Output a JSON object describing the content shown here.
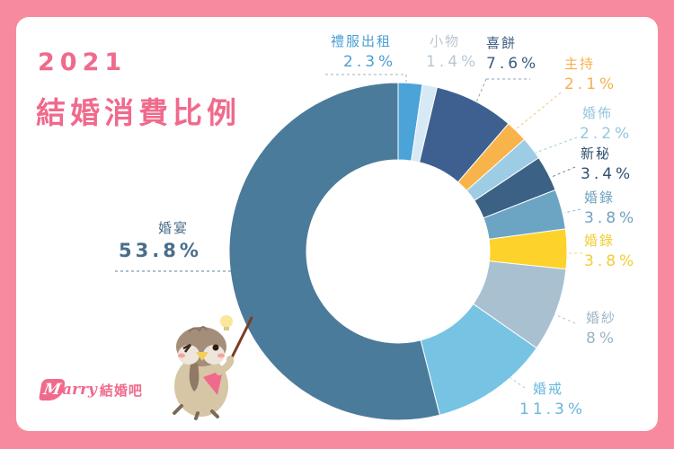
{
  "title": {
    "year": "2021",
    "main": "結婚消費比例"
  },
  "logo": {
    "mark": "M",
    "script": "arry",
    "name": "結婚吧"
  },
  "colors": {
    "background": "#f88a9f",
    "title": "#f06a8c",
    "card": "#ffffff"
  },
  "chart_data": {
    "type": "pie",
    "subtype": "donut",
    "title": "2021 結婚消費比例",
    "start_angle": "12 o'clock",
    "direction": "clockwise",
    "unit": "%",
    "categories": [
      "禮服出租",
      "小物",
      "喜餅",
      "主持",
      "婚佈",
      "新秘",
      "婚錄",
      "婚錄",
      "婚紗",
      "婚戒",
      "婚宴"
    ],
    "values": [
      2.3,
      1.4,
      7.6,
      2.1,
      2.2,
      3.4,
      3.8,
      3.8,
      8,
      11.3,
      53.8
    ],
    "slices": [
      {
        "label": "禮服出租",
        "value": 2.3,
        "display": "2.3%",
        "color": "#4ba3d8",
        "text_color": "#4a9fd4"
      },
      {
        "label": "小物",
        "value": 1.4,
        "display": "1.4%",
        "color": "#d6e9f4",
        "text_color": "#b9c7d2"
      },
      {
        "label": "喜餅",
        "value": 7.6,
        "display": "7.6%",
        "color": "#3d6090",
        "text_color": "#3a5a80"
      },
      {
        "label": "主持",
        "value": 2.1,
        "display": "2.1%",
        "color": "#f9b34b",
        "text_color": "#f5b04c"
      },
      {
        "label": "婚佈",
        "value": 2.2,
        "display": "2.2%",
        "color": "#9dcde4",
        "text_color": "#96c6de"
      },
      {
        "label": "新秘",
        "value": 3.4,
        "display": "3.4%",
        "color": "#3b6184",
        "text_color": "#2f4f6e"
      },
      {
        "label": "婚錄",
        "value": 3.8,
        "display": "3.8%",
        "color": "#6ca5c4",
        "text_color": "#6fa2c0"
      },
      {
        "label": "婚錄",
        "value": 3.8,
        "display": "3.8%",
        "color": "#fdd22b",
        "text_color": "#f3cd35"
      },
      {
        "label": "婚紗",
        "value": 8,
        "display": "8%",
        "color": "#a9c0d1",
        "text_color": "#9db5c6"
      },
      {
        "label": "婚戒",
        "value": 11.3,
        "display": "11.3%",
        "color": "#77c3e3",
        "text_color": "#68b6da"
      },
      {
        "label": "婚宴",
        "value": 53.8,
        "display": "53.8%",
        "color": "#4b7b9b",
        "text_color": "#4a6e8a"
      }
    ],
    "legend": "none (callout labels with dashed leader lines)"
  }
}
